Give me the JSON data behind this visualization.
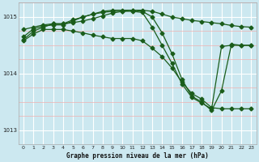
{
  "title": "Graphe pression niveau de la mer (hPa)",
  "bg_color": "#cce8f0",
  "grid_color_major": "#ffffff",
  "grid_color_minor": "#f0b0b0",
  "line_color": "#1a5c1a",
  "xlim": [
    -0.5,
    23.5
  ],
  "ylim": [
    1012.75,
    1015.25
  ],
  "yticks": [
    1013,
    1014,
    1015
  ],
  "xticks": [
    0,
    1,
    2,
    3,
    4,
    5,
    6,
    7,
    8,
    9,
    10,
    11,
    12,
    13,
    14,
    15,
    16,
    17,
    18,
    19,
    20,
    21,
    22,
    23
  ],
  "series": [
    {
      "x": [
        0,
        1,
        2,
        3,
        4,
        5,
        6,
        7,
        8,
        9,
        10,
        11,
        12,
        13,
        14,
        15,
        16,
        17,
        18,
        19,
        20,
        21,
        22,
        23
      ],
      "y": [
        1014.78,
        1014.82,
        1014.86,
        1014.88,
        1014.88,
        1014.9,
        1014.93,
        1014.97,
        1015.02,
        1015.07,
        1015.1,
        1015.12,
        1015.12,
        1015.1,
        1015.05,
        1015.0,
        1014.97,
        1014.94,
        1014.92,
        1014.9,
        1014.88,
        1014.85,
        1014.83,
        1014.82
      ]
    },
    {
      "x": [
        0,
        1,
        2,
        3,
        4,
        5,
        6,
        7,
        8,
        9,
        10,
        11,
        12,
        13,
        14,
        15,
        16,
        17,
        18,
        19,
        20,
        21,
        22,
        23
      ],
      "y": [
        1014.6,
        1014.75,
        1014.82,
        1014.88,
        1014.88,
        1014.95,
        1015.0,
        1015.05,
        1015.08,
        1015.1,
        1015.1,
        1015.1,
        1015.08,
        1014.82,
        1014.5,
        1014.18,
        1013.82,
        1013.58,
        1013.48,
        1013.38,
        1014.48,
        1014.5,
        1014.5,
        1014.5
      ]
    },
    {
      "x": [
        0,
        1,
        2,
        3,
        4,
        5,
        6,
        7,
        8,
        9,
        10,
        11,
        12,
        13,
        14,
        15,
        16,
        17,
        18,
        19,
        20,
        21,
        22,
        23
      ],
      "y": [
        1014.65,
        1014.79,
        1014.84,
        1014.86,
        1014.86,
        1014.93,
        1015.0,
        1015.05,
        1015.1,
        1015.12,
        1015.12,
        1015.12,
        1015.1,
        1015.0,
        1014.72,
        1014.35,
        1013.9,
        1013.6,
        1013.5,
        1013.35,
        1013.7,
        1014.52,
        1014.5,
        1014.5
      ]
    },
    {
      "x": [
        0,
        1,
        2,
        3,
        4,
        5,
        6,
        7,
        8,
        9,
        10,
        11,
        12,
        13,
        14,
        15,
        16,
        17,
        18,
        19,
        20,
        21,
        22,
        23
      ],
      "y": [
        1014.58,
        1014.7,
        1014.78,
        1014.78,
        1014.78,
        1014.75,
        1014.72,
        1014.68,
        1014.65,
        1014.62,
        1014.62,
        1014.62,
        1014.58,
        1014.45,
        1014.3,
        1014.1,
        1013.85,
        1013.65,
        1013.55,
        1013.4,
        1013.38,
        1013.38,
        1013.38,
        1013.38
      ]
    }
  ]
}
